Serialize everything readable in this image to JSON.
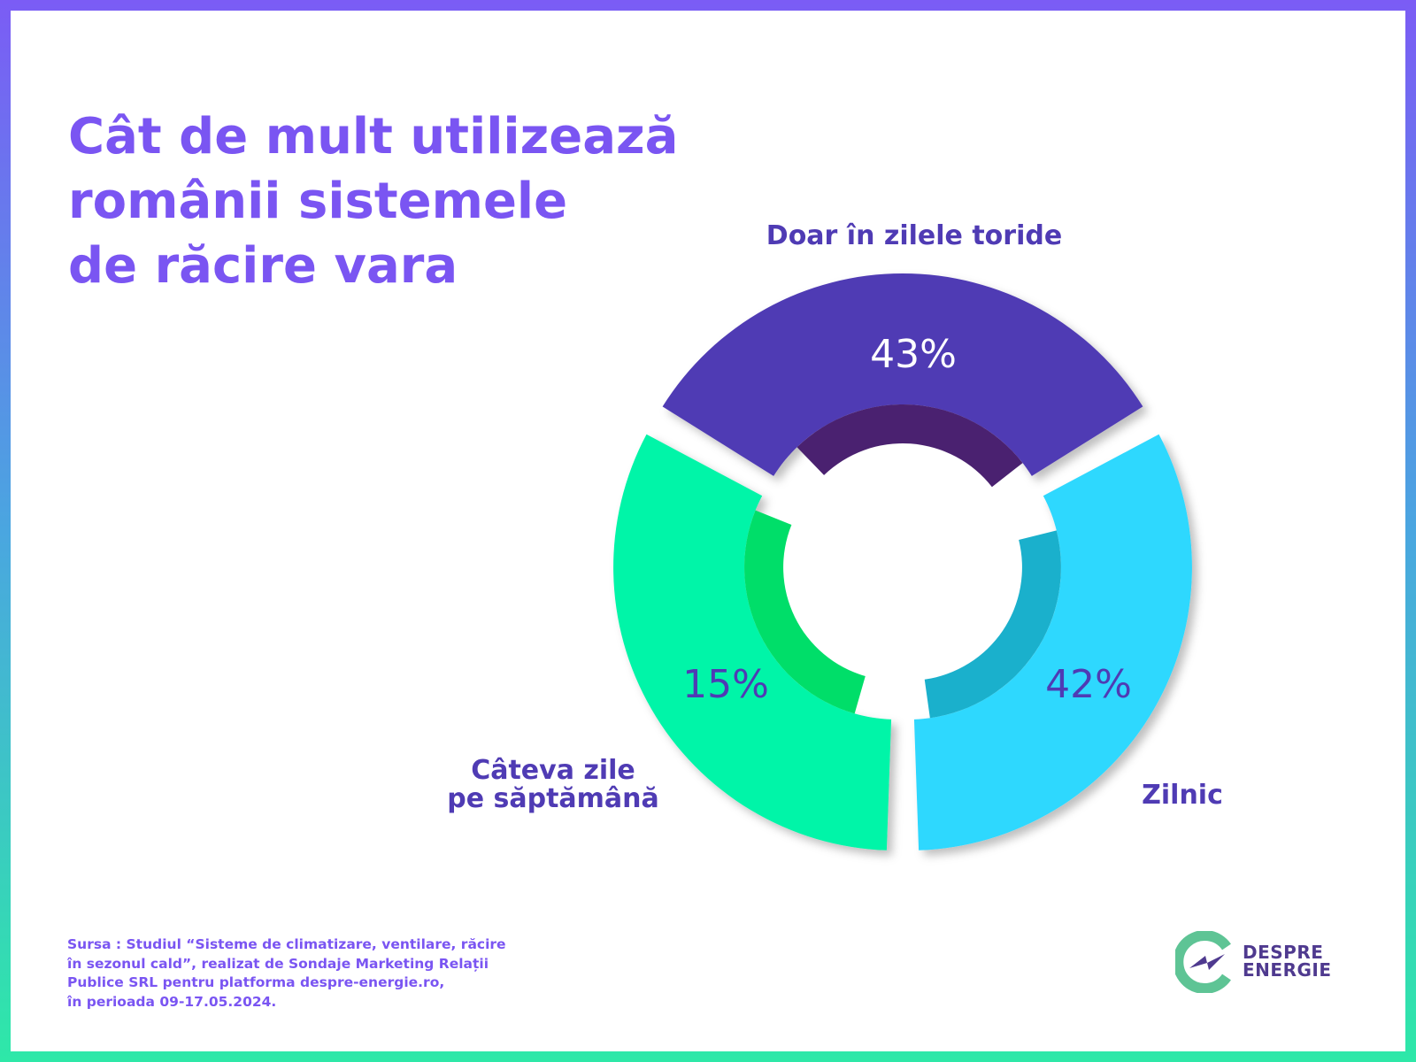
{
  "title_lines": [
    "Cât de mult utilizează",
    "românii sistemele",
    "de răcire vara"
  ],
  "chart_data": {
    "type": "pie",
    "title": "Cât de mult utilizează românii sistemele de răcire vara",
    "categories": [
      "Doar în zilele toride",
      "Zilnic",
      "Câteva zile pe săptămână"
    ],
    "values": [
      43,
      42,
      15
    ],
    "value_labels": [
      "43%",
      "42%",
      "15%"
    ],
    "category_label_lines": [
      [
        "Doar în zilele toride"
      ],
      [
        "Zilnic"
      ],
      [
        "Câteva zile",
        "pe săptămână"
      ]
    ],
    "colors": [
      "#4f3bb4",
      "#2fd8fe",
      "#00f5a8"
    ],
    "inner_colors": [
      "#4a2170",
      "#1ab0cc",
      "#00de69"
    ],
    "value_label_colors": [
      "#ffffff",
      "#4f3bb4",
      "#4f3bb4"
    ],
    "donut": true,
    "legend": "none"
  },
  "source_lines": [
    "Sursa : Studiul “Sisteme de climatizare, ventilare, răcire",
    "în sezonul cald”, realizat de Sondaje Marketing Relații",
    "Publice SRL pentru platforma despre-energie.ro,",
    "în perioada 09-17.05.2024."
  ],
  "logo": {
    "line1": "DESPRE",
    "line2": "ENERGIE",
    "green": "#5ec495",
    "purple": "#4f3a8f"
  }
}
